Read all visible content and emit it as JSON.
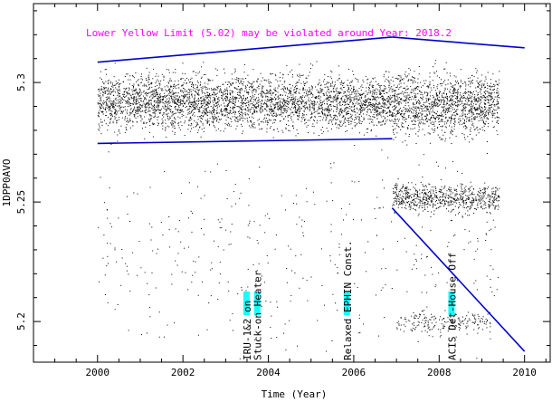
{
  "chart_data": {
    "type": "scatter",
    "title": "",
    "xlabel": "Time (Year)",
    "ylabel": "1DPP0AVO",
    "xlim": [
      1998.5,
      2010.6
    ],
    "ylim": [
      5.183,
      5.333
    ],
    "x_ticks": [
      2000,
      2002,
      2004,
      2006,
      2008,
      2010
    ],
    "x_tick_labels": [
      "2000",
      "2002",
      "2004",
      "2006",
      "2008",
      "2010"
    ],
    "y_ticks": [
      5.2,
      5.25,
      5.3
    ],
    "y_tick_labels": [
      "5.2",
      "5.25",
      "5.3"
    ],
    "warning_text": "Lower Yellow  Limit (5.02) may be violated around Year: 2018.2",
    "warning_color": "#ff00ff",
    "point_color": "#000000",
    "envelope_color": "#0000cc",
    "event_color": "#00ffff",
    "envelope_lines": [
      {
        "name": "upper-bound-1",
        "x": [
          2000.0,
          2006.9
        ],
        "y": [
          5.3085,
          5.319
        ]
      },
      {
        "name": "upper-bound-2",
        "x": [
          2006.9,
          2010.0
        ],
        "y": [
          5.319,
          5.3145
        ]
      },
      {
        "name": "lower-bound-1",
        "x": [
          2000.0,
          2006.9
        ],
        "y": [
          5.2745,
          5.2765
        ]
      },
      {
        "name": "lower-bound-2",
        "x": [
          2006.9,
          2010.0
        ],
        "y": [
          5.2475,
          5.1875
        ]
      }
    ],
    "data_regions": [
      {
        "name": "main-band-early",
        "x_range": [
          2000.0,
          2006.9
        ],
        "y_center": 5.292,
        "y_spread": 0.012,
        "density": 3600
      },
      {
        "name": "main-band-late",
        "x_range": [
          2006.9,
          2009.4
        ],
        "y_center": 5.291,
        "y_spread": 0.014,
        "density": 1400
      },
      {
        "name": "lower-cluster-late",
        "x_range": [
          2006.9,
          2009.4
        ],
        "y_center": 5.252,
        "y_spread": 0.006,
        "density": 700
      },
      {
        "name": "sparse-scatter",
        "x_range": [
          2000.0,
          2009.4
        ],
        "y_center": 5.23,
        "y_spread": 0.045,
        "density": 420
      },
      {
        "name": "low-cluster-late",
        "x_range": [
          2007.0,
          2009.2
        ],
        "y_center": 5.2,
        "y_spread": 0.005,
        "density": 200
      }
    ],
    "events": [
      {
        "label": "IRU-1&2 on",
        "x": 2003.5
      },
      {
        "label": "Stuck-on Heater",
        "x": 2003.75
      },
      {
        "label": "Relaxed EPHIN Const.",
        "x": 2005.85
      },
      {
        "label": "ACIS Det-House Off",
        "x": 2008.3
      }
    ]
  }
}
